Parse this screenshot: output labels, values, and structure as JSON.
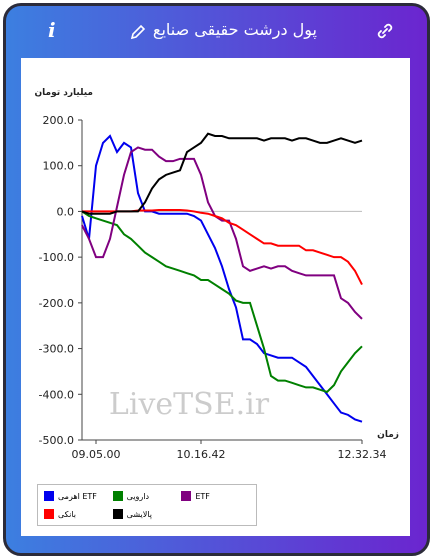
{
  "header": {
    "title": "پول درشت حقیقی صنایع",
    "info_icon": "i"
  },
  "chart_data": {
    "type": "line",
    "y_label": "میلیارد تومان",
    "x_label": "زمان",
    "watermark": "LiveTSE.ir",
    "ylim": [
      -500,
      200
    ],
    "yticks": [
      {
        "value": 200,
        "label": "200.0"
      },
      {
        "value": 100,
        "label": "100.0"
      },
      {
        "value": 0,
        "label": "0.0"
      },
      {
        "value": -100,
        "label": "-100.0"
      },
      {
        "value": -200,
        "label": "-200.0"
      },
      {
        "value": -300,
        "label": "-300.0"
      },
      {
        "value": -400,
        "label": "-400.0"
      },
      {
        "value": -500,
        "label": "-500.0"
      }
    ],
    "categories": [
      null,
      null,
      "09.05.00",
      null,
      null,
      null,
      null,
      null,
      null,
      null,
      null,
      null,
      null,
      null,
      null,
      null,
      null,
      "10.16.42",
      null,
      null,
      null,
      null,
      null,
      null,
      null,
      null,
      null,
      null,
      null,
      null,
      null,
      null,
      null,
      null,
      null,
      null,
      null,
      null,
      null,
      null,
      "12.32.34"
    ],
    "series": [
      {
        "name": "ETF اهرمی",
        "color": "#0000ee",
        "values": [
          -10,
          -60,
          100,
          150,
          165,
          130,
          150,
          140,
          40,
          0,
          0,
          -5,
          -5,
          -5,
          -5,
          -5,
          -10,
          -20,
          -50,
          -80,
          -120,
          -170,
          -210,
          -280,
          -280,
          -290,
          -310,
          -315,
          -320,
          -320,
          -320,
          -330,
          -340,
          -360,
          -380,
          -400,
          -420,
          -440,
          -445,
          -455,
          -460
        ]
      },
      {
        "name": "دارویی",
        "color": "#008000",
        "values": [
          0,
          -10,
          -15,
          -20,
          -25,
          -30,
          -50,
          -60,
          -75,
          -90,
          -100,
          -110,
          -120,
          -125,
          -130,
          -135,
          -140,
          -150,
          -150,
          -160,
          -170,
          -180,
          -195,
          -200,
          -200,
          -250,
          -300,
          -360,
          -370,
          -370,
          -375,
          -380,
          -385,
          -385,
          -390,
          -395,
          -380,
          -350,
          -330,
          -310,
          -295
        ]
      },
      {
        "name": "ETF",
        "color": "#800080",
        "values": [
          -30,
          -60,
          -100,
          -100,
          -60,
          10,
          80,
          130,
          140,
          135,
          135,
          120,
          110,
          110,
          115,
          115,
          115,
          80,
          20,
          -10,
          -20,
          -20,
          -60,
          -120,
          -130,
          -125,
          -120,
          -125,
          -120,
          -120,
          -130,
          -135,
          -140,
          -140,
          -140,
          -140,
          -140,
          -190,
          -200,
          -220,
          -235
        ]
      },
      {
        "name": "بانکی",
        "color": "#ff0000",
        "values": [
          0,
          0,
          0,
          0,
          0,
          0,
          0,
          0,
          2,
          2,
          2,
          3,
          3,
          3,
          3,
          2,
          0,
          -3,
          -5,
          -10,
          -15,
          -25,
          -30,
          -40,
          -50,
          -60,
          -70,
          -70,
          -75,
          -75,
          -75,
          -75,
          -85,
          -85,
          -90,
          -95,
          -100,
          -100,
          -110,
          -130,
          -160
        ]
      },
      {
        "name": "پالایشی",
        "color": "#000000",
        "values": [
          0,
          -5,
          -5,
          -5,
          -5,
          0,
          0,
          0,
          0,
          20,
          50,
          70,
          80,
          85,
          90,
          130,
          140,
          150,
          170,
          165,
          165,
          160,
          160,
          160,
          160,
          160,
          155,
          160,
          160,
          160,
          155,
          160,
          160,
          155,
          150,
          150,
          155,
          160,
          155,
          150,
          155
        ]
      }
    ]
  }
}
